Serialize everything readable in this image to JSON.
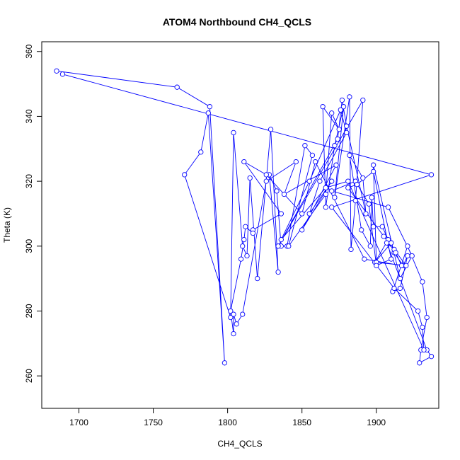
{
  "chart_data": {
    "type": "line",
    "title": "ATOM4 Northbound CH4_QCLS",
    "xlabel": "CH4_QCLS",
    "ylabel": "Theta (K)",
    "xlim": [
      1675,
      1942
    ],
    "ylim": [
      250,
      363
    ],
    "x_ticks": [
      1700,
      1750,
      1800,
      1850,
      1900
    ],
    "y_ticks": [
      260,
      280,
      300,
      320,
      340,
      360
    ],
    "grid": false,
    "line_color": "#0000ff",
    "marker": "open-circle",
    "series": [
      {
        "points": [
          [
            1685,
            354
          ],
          [
            1766,
            349
          ],
          [
            1788,
            343
          ],
          [
            1798,
            264
          ],
          [
            1787,
            341
          ],
          [
            1782,
            329
          ],
          [
            1771,
            322
          ],
          [
            1802,
            278
          ],
          [
            1804,
            335
          ],
          [
            1810,
            300
          ],
          [
            1813,
            297
          ],
          [
            1815,
            321
          ],
          [
            1820,
            290
          ],
          [
            1829,
            336
          ],
          [
            1834,
            292
          ],
          [
            1828,
            322
          ],
          [
            1833,
            317
          ],
          [
            1836,
            300
          ],
          [
            1840,
            300
          ],
          [
            1852,
            331
          ],
          [
            1857,
            328
          ],
          [
            1841,
            300
          ],
          [
            1866,
            316
          ],
          [
            1870,
            341
          ],
          [
            1875,
            336
          ],
          [
            1864,
            343
          ],
          [
            1866,
            312
          ],
          [
            1872,
            331
          ],
          [
            1878,
            343
          ],
          [
            1872,
            315
          ],
          [
            1882,
            346
          ],
          [
            1883,
            299
          ],
          [
            1886,
            314
          ],
          [
            1891,
            345
          ],
          [
            1834,
            300
          ],
          [
            1874,
            333
          ],
          [
            1877,
            345
          ],
          [
            1880,
            337
          ],
          [
            1893,
            310
          ],
          [
            1891,
            321
          ],
          [
            1882,
            328
          ],
          [
            1890,
            305
          ],
          [
            1896,
            300
          ],
          [
            1897,
            315
          ],
          [
            1898,
            306
          ],
          [
            1904,
            306
          ],
          [
            1908,
            302
          ],
          [
            1899,
            295
          ],
          [
            1910,
            301
          ],
          [
            1912,
            298
          ],
          [
            1918,
            294
          ],
          [
            1921,
            297
          ],
          [
            1916,
            287
          ],
          [
            1911,
            286
          ],
          [
            1921,
            300
          ],
          [
            1931,
            289
          ],
          [
            1934,
            278
          ],
          [
            1930,
            268
          ],
          [
            1929,
            264
          ],
          [
            1937,
            266
          ],
          [
            1934,
            268
          ],
          [
            1907,
            301
          ],
          [
            1912,
            299
          ],
          [
            1920,
            294
          ],
          [
            1900,
            295
          ],
          [
            1898,
            325
          ],
          [
            1916,
            290
          ],
          [
            1924,
            297
          ],
          [
            1908,
            312
          ],
          [
            1870,
            317
          ],
          [
            1886,
            320
          ],
          [
            1895,
            313
          ],
          [
            1900,
            294
          ],
          [
            1910,
            296
          ],
          [
            1898,
            323
          ],
          [
            1887,
            319
          ],
          [
            1881,
            318
          ],
          [
            1905,
            303
          ],
          [
            1913,
            298
          ],
          [
            1917,
            294
          ],
          [
            1892,
            296
          ],
          [
            1859,
            326
          ],
          [
            1850,
            310
          ],
          [
            1826,
            322
          ],
          [
            1811,
            326
          ],
          [
            1836,
            310
          ],
          [
            1817,
            305
          ],
          [
            1817,
            304
          ],
          [
            1812,
            306
          ],
          [
            1811,
            302
          ],
          [
            1809,
            296
          ],
          [
            1802,
            280
          ],
          [
            1804,
            273
          ],
          [
            1804,
            279
          ],
          [
            1806,
            276
          ],
          [
            1810,
            279
          ],
          [
            1826,
            320
          ],
          [
            1846,
            326
          ],
          [
            1838,
            316
          ],
          [
            1873,
            325
          ],
          [
            1850,
            305
          ],
          [
            1870,
            320
          ],
          [
            1855,
            310
          ],
          [
            1862,
            320
          ],
          [
            1880,
            335
          ],
          [
            1876,
            342
          ],
          [
            1855,
            320
          ],
          [
            1836,
            302
          ],
          [
            1866,
            318
          ],
          [
            1881,
            320
          ],
          [
            1932,
            268
          ],
          [
            1931,
            275
          ],
          [
            1928,
            280
          ],
          [
            1912,
            287
          ],
          [
            1870,
            312
          ],
          [
            1937,
            322
          ],
          [
            1689,
            353
          ]
        ]
      }
    ]
  }
}
